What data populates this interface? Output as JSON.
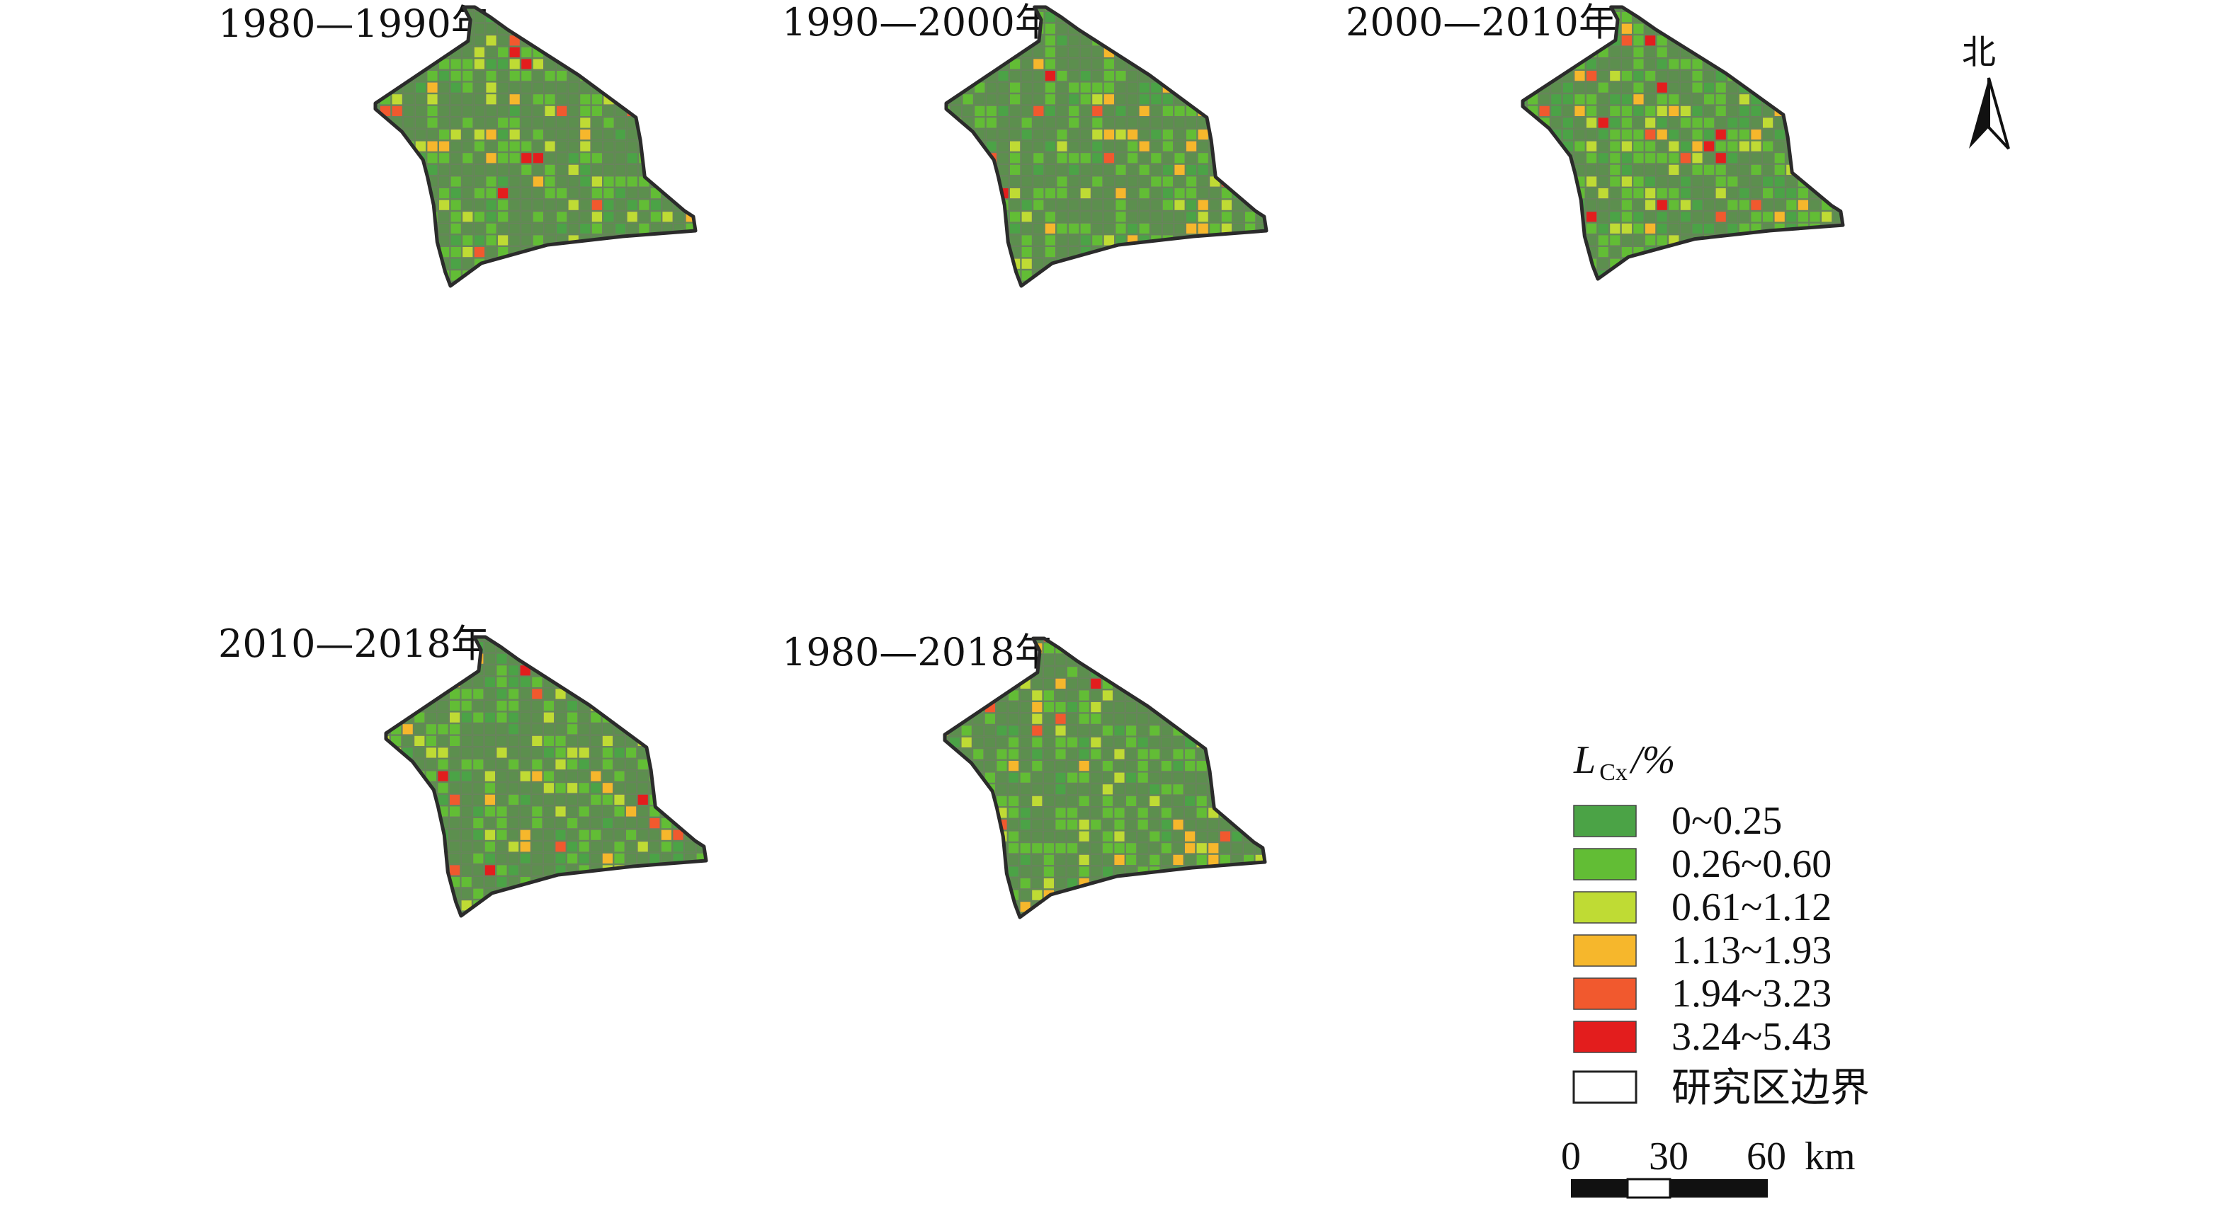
{
  "figure": {
    "panels": [
      {
        "id": "p1",
        "title": "1980—1990年",
        "intensity": 0.1
      },
      {
        "id": "p2",
        "title": "1990—2000年",
        "intensity": 0.28
      },
      {
        "id": "p3",
        "title": "2000—2010年",
        "intensity": 0.8
      },
      {
        "id": "p4",
        "title": "2010—2018年",
        "intensity": 0.3
      },
      {
        "id": "p5",
        "title": "1980—2018年",
        "intensity": 0.22
      }
    ],
    "legend": {
      "title_main": "L",
      "title_sub": "Cx",
      "title_unit": "/%",
      "classes": [
        {
          "label": "0~0.25",
          "color": "#4ba346"
        },
        {
          "label": "0.26~0.60",
          "color": "#62bd35"
        },
        {
          "label": "0.61~1.12",
          "color": "#bfdb34"
        },
        {
          "label": "1.13~1.93",
          "color": "#f6b72c"
        },
        {
          "label": "1.94~3.23",
          "color": "#f1592e"
        },
        {
          "label": "3.24~5.43",
          "color": "#e31d1d"
        }
      ],
      "boundary_label": "研究区边界"
    },
    "north_label": "北",
    "scale_bar": {
      "ticks": [
        "0",
        "30",
        "60"
      ],
      "unit": "km"
    },
    "colors": {
      "base_fill": "#5c8f4e",
      "outline": "#2b2b2b"
    }
  }
}
